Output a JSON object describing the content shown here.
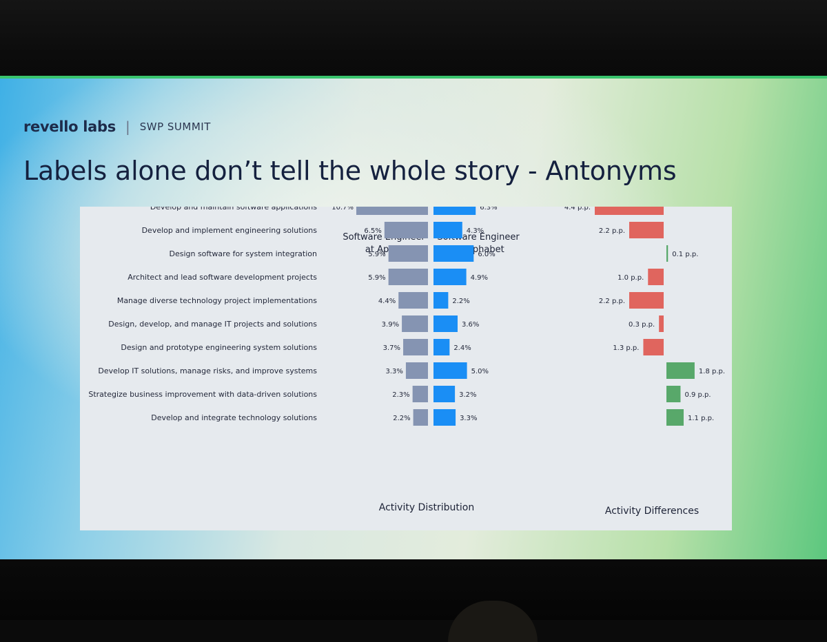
{
  "brand": {
    "name": "revello labs",
    "separator": "|",
    "event": "SWP SUMMIT"
  },
  "slide": {
    "title": "Labels alone don’t tell the whole story - Antonyms"
  },
  "colors": {
    "apple_bar": "#8594b2",
    "alphabet_bar": "#1a8ef5",
    "negative_diff": "#e0655e",
    "positive_diff": "#58a86a"
  },
  "chart_data": {
    "type": "bar",
    "orientation": "horizontal",
    "categories": [
      "Develop and maintain software applications",
      "Develop and implement engineering solutions",
      "Design software for system integration",
      "Architect and lead software development projects",
      "Manage diverse technology project implementations",
      "Design, develop, and manage IT projects and solutions",
      "Design and prototype engineering system solutions",
      "Develop IT solutions, manage risks, and improve systems",
      "Strategize business improvement with data-driven solutions",
      "Develop and integrate technology solutions"
    ],
    "series": [
      {
        "name": "Software Engineer at Apple",
        "name_lines": [
          "Software Engineer",
          "at Apple"
        ],
        "values": [
          10.7,
          6.5,
          5.9,
          5.9,
          4.4,
          3.9,
          3.7,
          3.3,
          2.3,
          2.2
        ],
        "labels": [
          "10.7%",
          "6.5%",
          "5.9%",
          "5.9%",
          "4.4%",
          "3.9%",
          "3.7%",
          "3.3%",
          "2.3%",
          "2.2%"
        ]
      },
      {
        "name": "Software Engineer at Alphabet",
        "name_lines": [
          "Software Engineer",
          "at Alphabet"
        ],
        "values": [
          6.3,
          4.3,
          6.0,
          4.9,
          2.2,
          3.6,
          2.4,
          5.0,
          3.2,
          3.3
        ],
        "labels": [
          "6.3%",
          "4.3%",
          "6.0%",
          "4.9%",
          "2.2%",
          "3.6%",
          "2.4%",
          "5.0%",
          "3.2%",
          "3.3%"
        ]
      }
    ],
    "differences": {
      "values": [
        4.4,
        2.2,
        -0.1,
        1.0,
        2.2,
        0.3,
        1.3,
        -1.8,
        -0.9,
        -1.1
      ],
      "labels": [
        "4.4 p.p.",
        "2.2 p.p.",
        "0.1 p.p.",
        "1.0 p.p.",
        "2.2 p.p.",
        "0.3 p.p.",
        "1.3 p.p.",
        "1.8 p.p.",
        "0.9 p.p.",
        "1.1 p.p."
      ]
    },
    "xlabel_distribution": "Activity Distribution",
    "xlabel_differences": "Activity Differences"
  }
}
